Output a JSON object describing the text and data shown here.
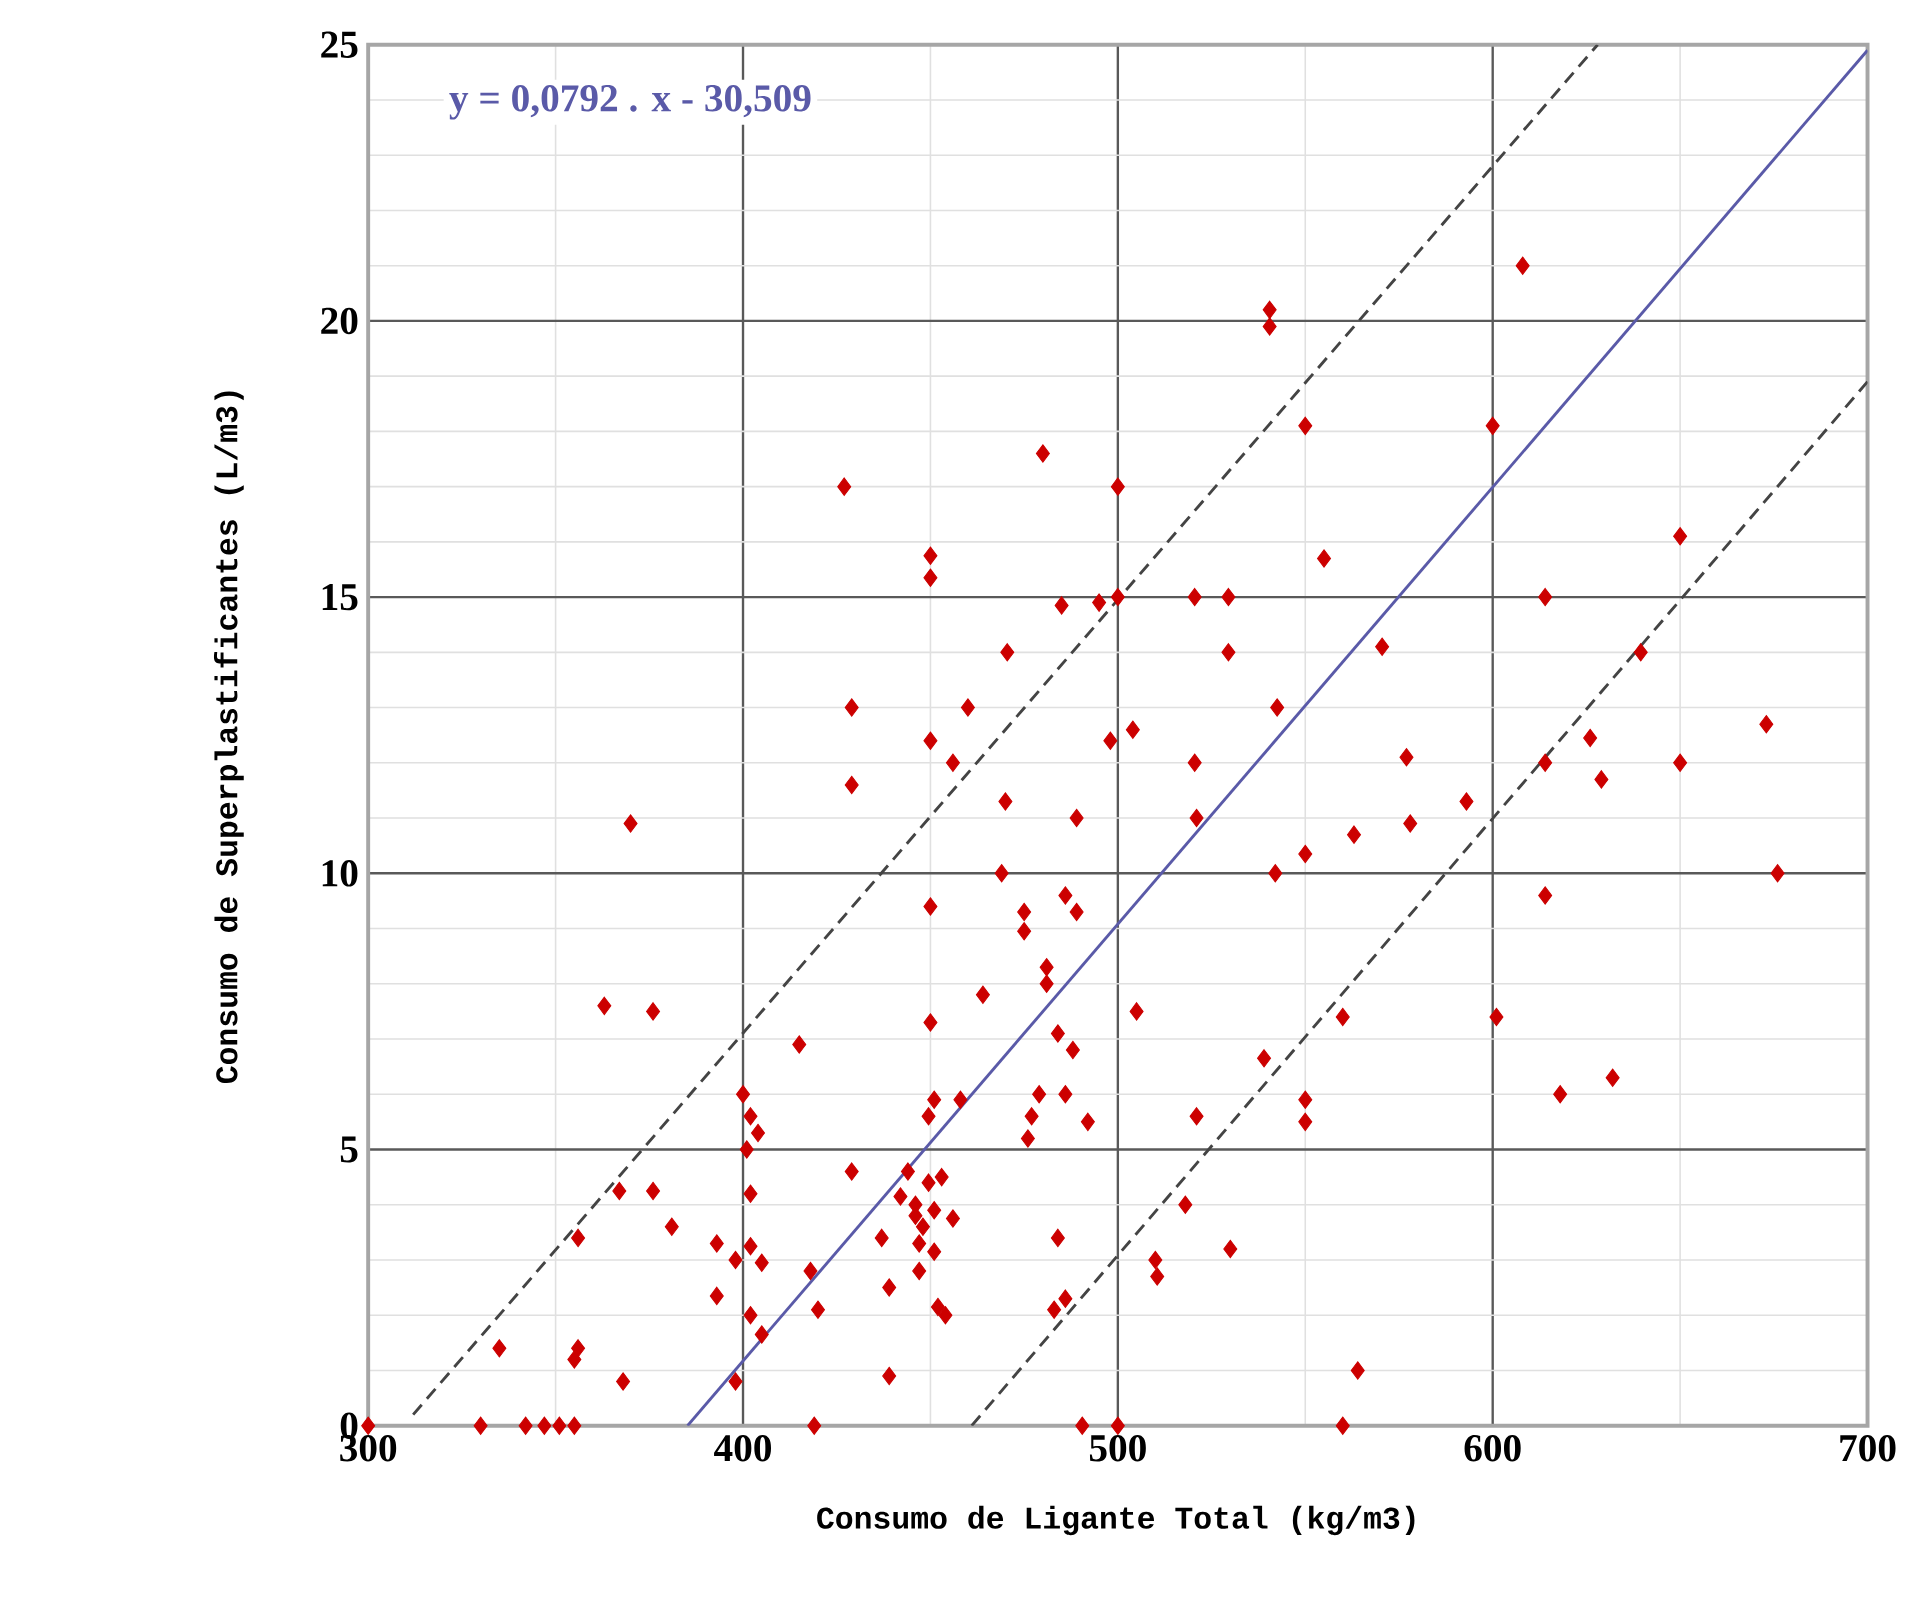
{
  "chart_data": {
    "type": "scatter",
    "xlabel": "Consumo de Ligante Total (kg/m3)",
    "ylabel": "Consumo de Superplastificantes (L/m3)",
    "annotations": [
      "y = 0,0792 . x - 30,509"
    ],
    "xlim": [
      300,
      700
    ],
    "ylim": [
      0,
      25
    ],
    "xticks": [
      300,
      400,
      500,
      600,
      700
    ],
    "yticks": [
      0,
      5,
      10,
      15,
      20,
      25
    ],
    "grid": true,
    "series": [
      {
        "color": "#cc0000",
        "marker": "diamond",
        "x": [
          370,
          363,
          376,
          415,
          400,
          402,
          404,
          401,
          429,
          402,
          367,
          376,
          381,
          356,
          393,
          402,
          398,
          405,
          418,
          393,
          402,
          405,
          420,
          335,
          356,
          355,
          368,
          398,
          300,
          330,
          342,
          347,
          351,
          355,
          419,
          470,
          489,
          521,
          563,
          550,
          542,
          469,
          450,
          475,
          475,
          486,
          489,
          481,
          481,
          464,
          505,
          560,
          450,
          484,
          488,
          539,
          451,
          458,
          449.5,
          479,
          486,
          477,
          492,
          476,
          521,
          550,
          550,
          444,
          449.5,
          442,
          451,
          446,
          456,
          437,
          447,
          451,
          447,
          439,
          452,
          518,
          530,
          484,
          510,
          510.5,
          486,
          483,
          439,
          564,
          490.5,
          500,
          560,
          593,
          578,
          676,
          614,
          601,
          618,
          632,
          608,
          600,
          650,
          614,
          570.5,
          639.5,
          673,
          626,
          577,
          614,
          650,
          629,
          540.5,
          540.5,
          550,
          480,
          500,
          555,
          450,
          450,
          485,
          495,
          500,
          520.5,
          529.5,
          470.5,
          529.5,
          460,
          429,
          542.5,
          450,
          456,
          498,
          504,
          520.5,
          429,
          427,
          446,
          453,
          448,
          454
        ],
        "values": [
          10.9,
          7.6,
          7.5,
          6.9,
          6.0,
          5.6,
          5.3,
          5.0,
          4.6,
          4.2,
          4.25,
          4.25,
          3.6,
          3.4,
          3.3,
          3.25,
          3.0,
          2.95,
          2.8,
          2.35,
          2.0,
          1.65,
          2.1,
          1.4,
          1.4,
          1.2,
          0.8,
          0.8,
          0,
          0,
          0,
          0,
          0,
          0,
          0,
          11.3,
          11.0,
          11.0,
          10.7,
          10.35,
          10.0,
          10.0,
          9.4,
          9.3,
          8.95,
          9.6,
          9.3,
          8.3,
          8.0,
          7.8,
          7.5,
          7.4,
          7.3,
          7.1,
          6.8,
          6.65,
          5.9,
          5.9,
          5.6,
          6.0,
          6.0,
          5.6,
          5.5,
          5.2,
          5.6,
          5.9,
          5.5,
          4.6,
          4.4,
          4.15,
          3.9,
          3.8,
          3.75,
          3.4,
          3.3,
          3.15,
          2.8,
          2.5,
          2.15,
          4.0,
          3.2,
          3.4,
          3.0,
          2.7,
          2.3,
          2.1,
          0.9,
          1.0,
          0,
          0,
          0,
          11.3,
          10.9,
          10.0,
          9.6,
          7.4,
          6.0,
          6.3,
          21.0,
          18.1,
          16.1,
          15.0,
          14.1,
          14.0,
          12.7,
          12.45,
          12.1,
          12.0,
          12.0,
          11.7,
          20.2,
          19.9,
          18.1,
          17.6,
          17.0,
          15.7,
          15.75,
          15.35,
          14.85,
          14.9,
          15.0,
          15.0,
          15.0,
          14.0,
          14.0,
          13.0,
          13.0,
          13.0,
          12.4,
          12.0,
          12.4,
          12.6,
          12.0,
          11.6,
          17.0,
          4.0,
          4.5,
          3.6,
          2.0
        ]
      },
      {
        "type": "line",
        "color": "#5a5aa8",
        "line_style": "solid",
        "x": [
          385.2,
          700
        ],
        "values": [
          0,
          24.9
        ]
      },
      {
        "type": "line",
        "color": "#444444",
        "line_style": "dashed",
        "x": [
          312,
          628
        ],
        "values": [
          0.2,
          25
        ]
      },
      {
        "type": "line",
        "color": "#444444",
        "line_style": "dashed",
        "x": [
          461,
          700
        ],
        "values": [
          0,
          18.9
        ]
      }
    ]
  }
}
